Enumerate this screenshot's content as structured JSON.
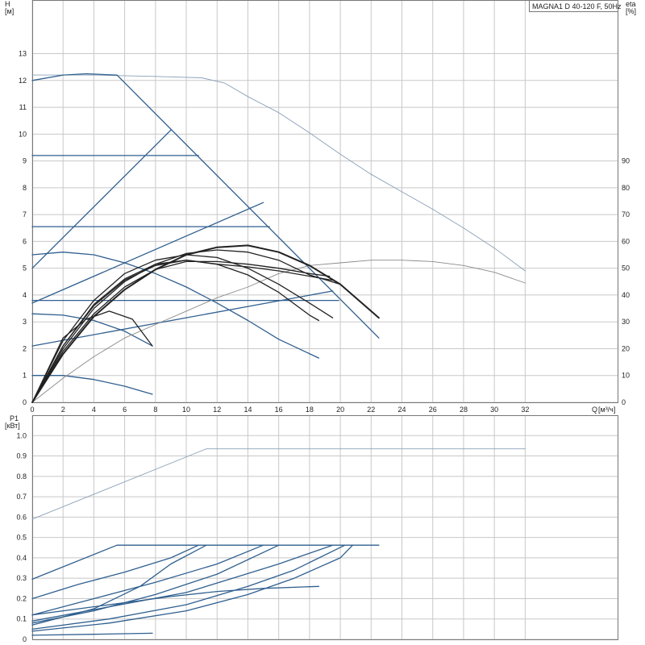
{
  "chart_data": [
    {
      "type": "line",
      "title": "MAGNA1 D 40-120 F, 50Hz",
      "ylabel": "H",
      "ylabel_unit": "[м]",
      "y2label": "eta",
      "y2label_unit": "[%]",
      "xlabel": "Q",
      "xlabel_unit": "[м³/ч]",
      "xlim": [
        0,
        38
      ],
      "ylim": [
        0,
        15
      ],
      "y2lim": [
        0,
        150
      ],
      "grid": true,
      "x_ticks": [
        0,
        2,
        4,
        6,
        8,
        10,
        12,
        14,
        16,
        18,
        20,
        22,
        24,
        26,
        28,
        30,
        32
      ],
      "y_ticks": [
        0,
        1,
        2,
        3,
        4,
        5,
        6,
        7,
        8,
        9,
        10,
        11,
        12,
        13
      ],
      "y2_ticks": [
        0,
        10,
        20,
        30,
        40,
        50,
        60,
        70,
        80,
        90
      ],
      "series": [
        {
          "kind": "head-max-twin",
          "color": "#8aa0b8",
          "points": [
            [
              0,
              12.2
            ],
            [
              4,
              12.2
            ],
            [
              8,
              12.15
            ],
            [
              11,
              12.1
            ],
            [
              12.5,
              11.9
            ],
            [
              14,
              11.4
            ],
            [
              16,
              10.8
            ],
            [
              18,
              10.05
            ],
            [
              20,
              9.25
            ],
            [
              22,
              8.5
            ],
            [
              24,
              7.85
            ],
            [
              26,
              7.2
            ],
            [
              28,
              6.5
            ],
            [
              30,
              5.75
            ],
            [
              32,
              4.9
            ]
          ]
        },
        {
          "kind": "head-max-single",
          "color": "#2f5f8f",
          "points": [
            [
              0,
              12
            ],
            [
              2,
              12.2
            ],
            [
              3.5,
              12.25
            ],
            [
              5.5,
              12.2
            ]
          ]
        },
        {
          "kind": "head-max-limit",
          "color": "#2f5f8f",
          "points": [
            [
              5.5,
              12.2
            ],
            [
              22.5,
              2.4
            ]
          ]
        },
        {
          "kind": "prop-high",
          "color": "#2f5f8f",
          "points": [
            [
              0,
              5
            ],
            [
              9,
              10.15
            ]
          ]
        },
        {
          "kind": "prop-mid",
          "color": "#2f5f8f",
          "points": [
            [
              0,
              3.7
            ],
            [
              15,
              7.45
            ]
          ]
        },
        {
          "kind": "prop-low",
          "color": "#2f5f8f",
          "points": [
            [
              0,
              2.1
            ],
            [
              19.5,
              4.15
            ]
          ]
        },
        {
          "kind": "const-9.2",
          "color": "#2f5f8f",
          "points": [
            [
              0,
              9.2
            ],
            [
              10.8,
              9.2
            ]
          ]
        },
        {
          "kind": "const-6.5",
          "color": "#2f5f8f",
          "points": [
            [
              0,
              6.55
            ],
            [
              15.4,
              6.55
            ]
          ]
        },
        {
          "kind": "const-3.8",
          "color": "#2f5f8f",
          "points": [
            [
              0,
              3.8
            ],
            [
              19.9,
              3.8
            ]
          ]
        },
        {
          "kind": "speed-high",
          "color": "#2f5f8f",
          "points": [
            [
              0,
              5.5
            ],
            [
              2,
              5.6
            ],
            [
              4,
              5.5
            ],
            [
              6,
              5.2
            ],
            [
              8,
              4.8
            ],
            [
              10,
              4.3
            ],
            [
              12,
              3.7
            ],
            [
              14,
              3.05
            ],
            [
              16,
              2.35
            ],
            [
              18.6,
              1.65
            ]
          ]
        },
        {
          "kind": "speed-mid",
          "color": "#2f5f8f",
          "points": [
            [
              0,
              3.3
            ],
            [
              2,
              3.25
            ],
            [
              4,
              3.05
            ],
            [
              6,
              2.65
            ],
            [
              7.8,
              2.1
            ]
          ]
        },
        {
          "kind": "speed-low",
          "color": "#2f5f8f",
          "points": [
            [
              0,
              1
            ],
            [
              2,
              1
            ],
            [
              4,
              0.85
            ],
            [
              6,
              0.6
            ],
            [
              7.8,
              0.3
            ]
          ]
        },
        {
          "kind": "eff-twin",
          "color": "#8a8a8a",
          "points": [
            [
              0,
              0
            ],
            [
              2,
              9
            ],
            [
              4,
              17
            ],
            [
              6,
              24
            ],
            [
              8,
              29
            ],
            [
              10,
              34
            ],
            [
              12,
              39
            ],
            [
              14,
              43
            ],
            [
              16,
              48
            ],
            [
              18,
              51
            ],
            [
              20,
              52
            ],
            [
              22,
              53
            ],
            [
              24,
              53
            ],
            [
              26,
              52.5
            ],
            [
              28,
              51
            ],
            [
              30,
              48.5
            ],
            [
              32,
              44.5
            ]
          ]
        },
        {
          "kind": "eff-1",
          "color": "#222222",
          "points": [
            [
              0,
              0
            ],
            [
              2,
              18
            ],
            [
              4,
              32
            ],
            [
              6,
              42
            ],
            [
              8,
              49.5
            ],
            [
              10,
              55
            ],
            [
              12,
              57.8
            ],
            [
              14,
              58.5
            ],
            [
              16,
              56
            ],
            [
              18,
              51
            ],
            [
              20,
              44
            ],
            [
              22.5,
              31.5
            ]
          ]
        },
        {
          "kind": "eff-2",
          "color": "#222222",
          "points": [
            [
              0,
              0
            ],
            [
              2,
              20
            ],
            [
              4,
              35
            ],
            [
              6,
              45
            ],
            [
              8,
              51.5
            ],
            [
              10,
              55.5
            ],
            [
              12,
              56.8
            ],
            [
              14,
              56
            ],
            [
              16,
              53
            ],
            [
              18,
              47.5
            ],
            [
              20,
              44
            ]
          ]
        },
        {
          "kind": "eff-3",
          "color": "#222222",
          "points": [
            [
              0,
              0
            ],
            [
              2,
              21
            ],
            [
              4,
              36.5
            ],
            [
              6,
              46
            ],
            [
              8,
              51.5
            ],
            [
              10,
              53
            ],
            [
              12,
              51.5
            ],
            [
              14,
              50.5
            ],
            [
              16,
              49
            ],
            [
              18,
              47
            ],
            [
              19.5,
              45.5
            ]
          ]
        },
        {
          "kind": "eff-4",
          "color": "#222222",
          "points": [
            [
              0,
              0
            ],
            [
              2,
              19
            ],
            [
              4,
              33
            ],
            [
              6,
              43
            ],
            [
              8,
              49.5
            ],
            [
              10,
              52.5
            ],
            [
              12,
              52.5
            ],
            [
              14,
              51.5
            ],
            [
              16,
              50
            ],
            [
              18,
              48
            ],
            [
              19.3,
              47
            ]
          ]
        },
        {
          "kind": "eff-5",
          "color": "#222222",
          "points": [
            [
              0,
              0
            ],
            [
              2,
              23
            ],
            [
              4,
              38
            ],
            [
              6,
              48
            ],
            [
              8,
              53
            ],
            [
              10,
              55
            ],
            [
              12,
              54
            ],
            [
              14,
              50
            ],
            [
              16,
              44
            ],
            [
              18,
              37
            ],
            [
              19.5,
              31.5
            ]
          ]
        },
        {
          "kind": "eff-6",
          "color": "#222222",
          "points": [
            [
              0,
              0
            ],
            [
              2,
              21
            ],
            [
              4,
              36
            ],
            [
              6,
              45.5
            ],
            [
              8,
              51
            ],
            [
              10,
              53
            ],
            [
              12,
              51.5
            ],
            [
              14,
              47.5
            ],
            [
              16,
              41
            ],
            [
              18,
              32.5
            ],
            [
              18.6,
              30.5
            ]
          ]
        },
        {
          "kind": "eff-7",
          "color": "#222222",
          "points": [
            [
              0,
              0
            ],
            [
              2,
              24
            ],
            [
              3.5,
              31
            ],
            [
              5,
              34
            ],
            [
              6.5,
              31
            ],
            [
              7.8,
              21
            ]
          ]
        }
      ]
    },
    {
      "type": "line",
      "ylabel": "P1",
      "ylabel_unit": "[кВт]",
      "xlim": [
        0,
        38
      ],
      "ylim": [
        0,
        1.1
      ],
      "grid": true,
      "x_ticks": [
        0,
        2,
        4,
        6,
        8,
        10,
        12,
        14,
        16,
        18,
        20,
        22,
        24,
        26,
        28,
        30,
        32
      ],
      "y_ticks": [
        0,
        0.1,
        0.2,
        0.3,
        0.4,
        0.5,
        0.6,
        0.7,
        0.8,
        0.9,
        1.0
      ],
      "series": [
        {
          "kind": "power-twin",
          "color": "#8aa0b8",
          "points": [
            [
              0,
              0.59
            ],
            [
              11.3,
              0.935
            ],
            [
              32,
              0.935
            ]
          ]
        },
        {
          "kind": "power-limit",
          "color": "#2f5f8f",
          "points": [
            [
              5.5,
              0.462
            ],
            [
              22.5,
              0.462
            ]
          ]
        },
        {
          "kind": "power-1",
          "color": "#2f5f8f",
          "points": [
            [
              0,
              0.295
            ],
            [
              5.5,
              0.462
            ]
          ]
        },
        {
          "kind": "power-2",
          "color": "#2f5f8f",
          "points": [
            [
              0,
              0.2
            ],
            [
              3,
              0.27
            ],
            [
              6,
              0.33
            ],
            [
              9,
              0.4
            ],
            [
              10.8,
              0.462
            ]
          ]
        },
        {
          "kind": "power-3",
          "color": "#2f5f8f",
          "points": [
            [
              0,
              0.07
            ],
            [
              4,
              0.15
            ],
            [
              7,
              0.26
            ],
            [
              9,
              0.37
            ],
            [
              11.3,
              0.462
            ]
          ]
        },
        {
          "kind": "power-4",
          "color": "#2f5f8f",
          "points": [
            [
              0,
              0.12
            ],
            [
              4,
              0.2
            ],
            [
              8,
              0.28
            ],
            [
              12,
              0.37
            ],
            [
              15,
              0.462
            ]
          ]
        },
        {
          "kind": "power-5",
          "color": "#2f5f8f",
          "points": [
            [
              0,
              0.08
            ],
            [
              4,
              0.14
            ],
            [
              8,
              0.22
            ],
            [
              12,
              0.32
            ],
            [
              16,
              0.462
            ]
          ]
        },
        {
          "kind": "power-6",
          "color": "#2f5f8f",
          "points": [
            [
              0,
              0.09
            ],
            [
              5,
              0.16
            ],
            [
              10,
              0.23
            ],
            [
              13,
              0.3
            ],
            [
              16,
              0.37
            ],
            [
              19.5,
              0.462
            ]
          ]
        },
        {
          "kind": "power-7",
          "color": "#2f5f8f",
          "points": [
            [
              0,
              0.05
            ],
            [
              5,
              0.1
            ],
            [
              10,
              0.17
            ],
            [
              14,
              0.26
            ],
            [
              17,
              0.34
            ],
            [
              20.3,
              0.462
            ]
          ]
        },
        {
          "kind": "power-8",
          "color": "#2f5f8f",
          "points": [
            [
              0,
              0.04
            ],
            [
              5,
              0.08
            ],
            [
              10,
              0.14
            ],
            [
              14,
              0.22
            ],
            [
              17,
              0.3
            ],
            [
              20,
              0.4
            ],
            [
              20.8,
              0.462
            ]
          ]
        },
        {
          "kind": "power-9",
          "color": "#2f5f8f",
          "points": [
            [
              0,
              0.12
            ],
            [
              3,
              0.15
            ],
            [
              6,
              0.18
            ],
            [
              9,
              0.21
            ],
            [
              12,
              0.235
            ],
            [
              15,
              0.25
            ],
            [
              18.6,
              0.26
            ]
          ]
        },
        {
          "kind": "power-10",
          "color": "#2f5f8f",
          "points": [
            [
              0,
              0.02
            ],
            [
              4,
              0.025
            ],
            [
              7.8,
              0.03
            ]
          ]
        }
      ]
    }
  ]
}
